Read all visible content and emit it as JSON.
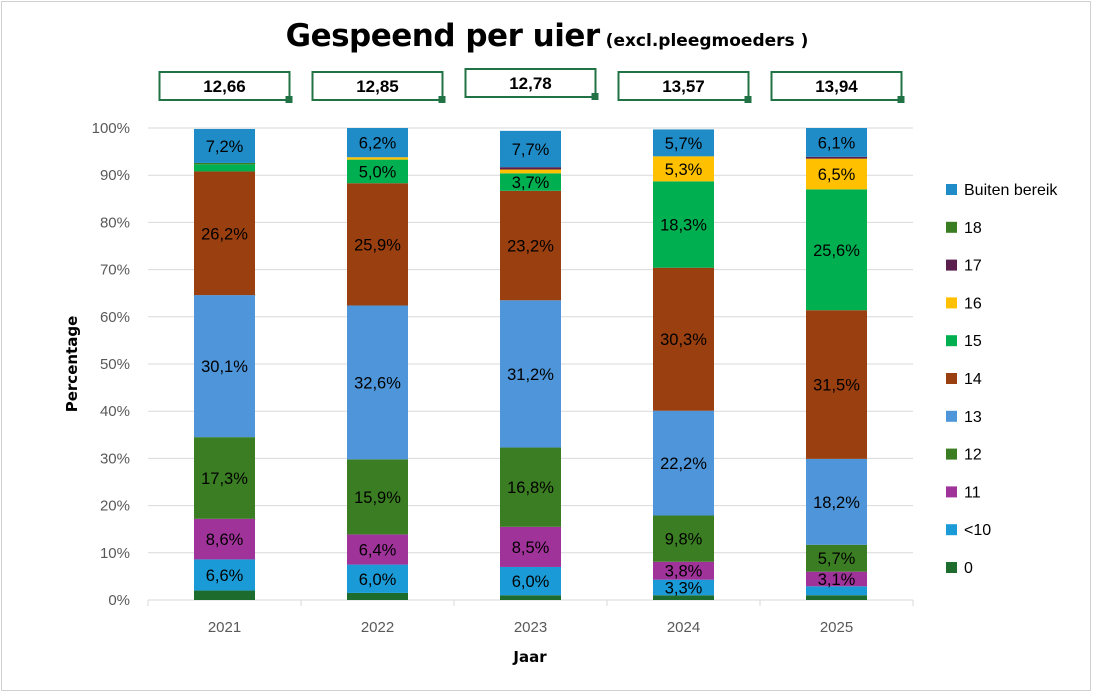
{
  "title": "Gespeend per uier",
  "subtitle": "(excl.pleegmoeders )",
  "chart_data": {
    "type": "bar",
    "stacked": true,
    "categories": [
      "2021",
      "2022",
      "2023",
      "2024",
      "2025"
    ],
    "averages": [
      "12,66",
      "12,85",
      "12,78",
      "13,57",
      "13,94"
    ],
    "xlabel": "Jaar",
    "ylabel": "Percentage",
    "ylim": [
      0,
      100
    ],
    "yticks": [
      "0%",
      "10%",
      "20%",
      "30%",
      "40%",
      "50%",
      "60%",
      "70%",
      "80%",
      "90%",
      "100%"
    ],
    "grid": true,
    "legend_position": "right",
    "series": [
      {
        "name": "0",
        "color": "#1e6b2e",
        "values": [
          2.0,
          1.5,
          1.0,
          1.0,
          1.0
        ],
        "labels": [
          "",
          "",
          "",
          "",
          ""
        ]
      },
      {
        "name": "<10",
        "color": "#1a9bd7",
        "values": [
          6.6,
          6.0,
          6.0,
          3.3,
          1.9
        ],
        "labels": [
          "6,6%",
          "6,0%",
          "6,0%",
          "3,3%",
          ""
        ]
      },
      {
        "name": "11",
        "color": "#a0339a",
        "values": [
          8.6,
          6.4,
          8.5,
          3.8,
          3.1
        ],
        "labels": [
          "8,6%",
          "6,4%",
          "8,5%",
          "3,8%",
          "3,1%"
        ]
      },
      {
        "name": "12",
        "color": "#3a7d22",
        "values": [
          17.3,
          15.9,
          16.8,
          9.8,
          5.7
        ],
        "labels": [
          "17,3%",
          "15,9%",
          "16,8%",
          "9,8%",
          "5,7%"
        ]
      },
      {
        "name": "13",
        "color": "#4e95d9",
        "values": [
          30.1,
          32.6,
          31.2,
          22.2,
          18.2
        ],
        "labels": [
          "30,1%",
          "32,6%",
          "31,2%",
          "22,2%",
          "18,2%"
        ]
      },
      {
        "name": "14",
        "color": "#9a3f0f",
        "values": [
          26.2,
          25.9,
          23.2,
          30.3,
          31.5
        ],
        "labels": [
          "26,2%",
          "25,9%",
          "23,2%",
          "30,3%",
          "31,5%"
        ]
      },
      {
        "name": "15",
        "color": "#00b050",
        "values": [
          1.5,
          5.0,
          3.7,
          18.3,
          25.6
        ],
        "labels": [
          "",
          "5,0%",
          "3,7%",
          "18,3%",
          "25,6%"
        ]
      },
      {
        "name": "16",
        "color": "#ffc000",
        "values": [
          0.0,
          0.5,
          0.8,
          5.3,
          6.5
        ],
        "labels": [
          "",
          "",
          "",
          "5,3%",
          "6,5%"
        ]
      },
      {
        "name": "17",
        "color": "#5b1f4e",
        "values": [
          0.0,
          0.0,
          0.5,
          0.0,
          0.4
        ],
        "labels": [
          "",
          "",
          "",
          "",
          ""
        ]
      },
      {
        "name": "18",
        "color": "#3a7d22",
        "values": [
          0.3,
          0.0,
          0.0,
          0.0,
          0.0
        ],
        "labels": [
          "",
          "",
          "",
          "",
          ""
        ]
      },
      {
        "name": "Buiten bereik",
        "color": "#1f8cc7",
        "values": [
          7.2,
          6.2,
          7.7,
          5.7,
          6.1
        ],
        "labels": [
          "7,2%",
          "6,2%",
          "7,7%",
          "5,7%",
          "6,1%"
        ]
      }
    ]
  }
}
